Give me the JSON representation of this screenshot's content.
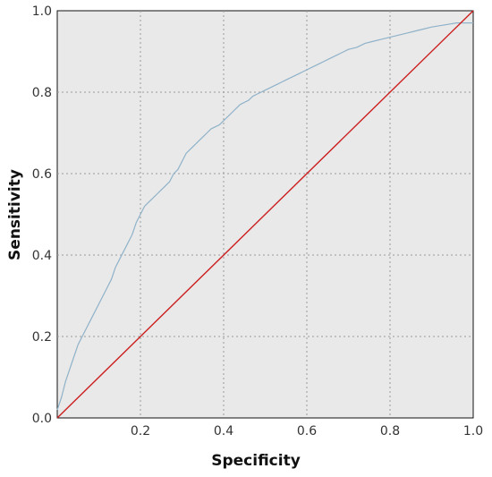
{
  "chart_data": {
    "type": "line",
    "xlabel": "Specificity",
    "ylabel": "Sensitivity",
    "xlim": [
      0,
      1
    ],
    "ylim": [
      0,
      1
    ],
    "x_ticks": [
      "0.2",
      "0.4",
      "0.6",
      "0.8",
      "1.0"
    ],
    "y_ticks": [
      "0.0",
      "0.2",
      "0.4",
      "0.6",
      "0.8",
      "1.0"
    ],
    "grid": true,
    "series": [
      {
        "color": "#8fb2c9",
        "x": [
          0.0,
          0.01,
          0.02,
          0.03,
          0.04,
          0.05,
          0.06,
          0.07,
          0.08,
          0.09,
          0.1,
          0.11,
          0.12,
          0.13,
          0.14,
          0.15,
          0.16,
          0.17,
          0.18,
          0.19,
          0.2,
          0.21,
          0.22,
          0.23,
          0.24,
          0.25,
          0.26,
          0.27,
          0.28,
          0.29,
          0.3,
          0.31,
          0.32,
          0.33,
          0.34,
          0.35,
          0.36,
          0.37,
          0.38,
          0.39,
          0.4,
          0.41,
          0.42,
          0.43,
          0.44,
          0.45,
          0.46,
          0.47,
          0.48,
          0.49,
          0.5,
          0.51,
          0.52,
          0.53,
          0.54,
          0.55,
          0.56,
          0.57,
          0.58,
          0.59,
          0.6,
          0.61,
          0.62,
          0.63,
          0.64,
          0.65,
          0.66,
          0.67,
          0.68,
          0.69,
          0.7,
          0.72,
          0.74,
          0.76,
          0.78,
          0.8,
          0.82,
          0.84,
          0.86,
          0.88,
          0.9,
          0.93,
          0.96,
          1.0
        ],
        "y": [
          0.02,
          0.05,
          0.09,
          0.12,
          0.15,
          0.18,
          0.2,
          0.22,
          0.24,
          0.26,
          0.28,
          0.3,
          0.32,
          0.34,
          0.37,
          0.39,
          0.41,
          0.43,
          0.45,
          0.48,
          0.5,
          0.52,
          0.53,
          0.54,
          0.55,
          0.56,
          0.57,
          0.58,
          0.6,
          0.61,
          0.63,
          0.65,
          0.66,
          0.67,
          0.68,
          0.69,
          0.7,
          0.71,
          0.715,
          0.72,
          0.73,
          0.74,
          0.75,
          0.76,
          0.77,
          0.775,
          0.78,
          0.79,
          0.795,
          0.8,
          0.805,
          0.81,
          0.815,
          0.82,
          0.825,
          0.83,
          0.835,
          0.84,
          0.845,
          0.85,
          0.855,
          0.86,
          0.865,
          0.87,
          0.875,
          0.88,
          0.885,
          0.89,
          0.895,
          0.9,
          0.905,
          0.91,
          0.92,
          0.925,
          0.93,
          0.935,
          0.94,
          0.945,
          0.95,
          0.955,
          0.96,
          0.965,
          0.97,
          0.97
        ]
      },
      {
        "color": "#cc1f1f",
        "x": [
          0,
          1
        ],
        "y": [
          0,
          1
        ]
      }
    ]
  }
}
